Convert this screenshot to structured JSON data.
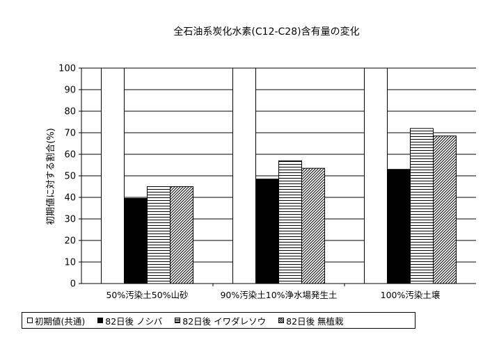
{
  "chart_data": {
    "type": "bar",
    "title": "全石油系炭化水素(C12-C28)含有量の変化",
    "xlabel": "",
    "ylabel": "初期値に対する割合(%)",
    "ylim": [
      0,
      100
    ],
    "yticks": [
      "0",
      "10",
      "20",
      "30",
      "40",
      "50",
      "60",
      "70",
      "80",
      "90",
      "100"
    ],
    "categories": [
      "50%汚染土50%山砂",
      "90%汚染土10%浄水場発生土",
      "100%汚染土壌"
    ],
    "series": [
      {
        "name": "初期値(共通)",
        "values": [
          100,
          100,
          100
        ],
        "color": "#ffffff",
        "pattern": "blank"
      },
      {
        "name": "82日後 ノシバ",
        "values": [
          39.5,
          48.5,
          53
        ],
        "color": "#000000",
        "pattern": "solid"
      },
      {
        "name": "82日後 イワダレソウ",
        "values": [
          45,
          57,
          72
        ],
        "color": "#ffffff",
        "pattern": "horizontal-lines"
      },
      {
        "name": "82日後 無植栽",
        "values": [
          45,
          53.5,
          68.5
        ],
        "color": "#ffffff",
        "pattern": "diagonal-hatch"
      }
    ],
    "grid": true,
    "legend_position": "bottom"
  }
}
